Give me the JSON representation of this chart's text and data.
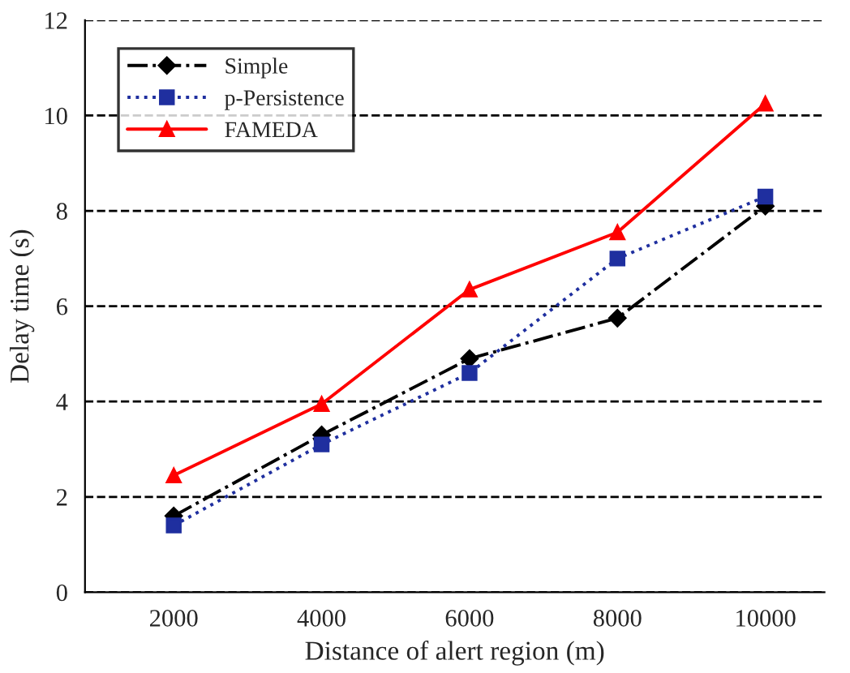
{
  "chart_data": {
    "type": "line",
    "xlabel": "Distance of alert region (m)",
    "ylabel": "Delay time (s)",
    "categories": [
      "2000",
      "4000",
      "6000",
      "8000",
      "10000"
    ],
    "series": [
      {
        "name": "Simple",
        "color": "#000000",
        "values": [
          1.6,
          3.3,
          4.9,
          5.75,
          8.1
        ],
        "marker": "diamond",
        "line_style": "dashdot"
      },
      {
        "name": "p-Persistence",
        "color": "#1f2f9f",
        "values": [
          1.4,
          3.1,
          4.6,
          7.0,
          8.3
        ],
        "marker": "square",
        "line_style": "dotted"
      },
      {
        "name": "FAMEDA",
        "color": "#ff0000",
        "values": [
          2.45,
          3.95,
          6.35,
          7.55,
          10.25
        ],
        "marker": "triangle",
        "line_style": "solid"
      }
    ],
    "ylim": [
      0,
      12
    ],
    "yticks": [
      0,
      2,
      4,
      6,
      8,
      10,
      12
    ],
    "grid": "y",
    "legend": "top left"
  }
}
